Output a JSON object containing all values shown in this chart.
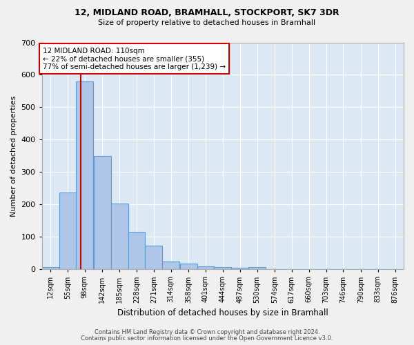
{
  "title1": "12, MIDLAND ROAD, BRAMHALL, STOCKPORT, SK7 3DR",
  "title2": "Size of property relative to detached houses in Bramhall",
  "xlabel": "Distribution of detached houses by size in Bramhall",
  "ylabel": "Number of detached properties",
  "bin_labels": [
    "12sqm",
    "55sqm",
    "98sqm",
    "142sqm",
    "185sqm",
    "228sqm",
    "271sqm",
    "314sqm",
    "358sqm",
    "401sqm",
    "444sqm",
    "487sqm",
    "530sqm",
    "574sqm",
    "617sqm",
    "660sqm",
    "703sqm",
    "746sqm",
    "790sqm",
    "833sqm",
    "876sqm"
  ],
  "bin_edges": [
    12,
    55,
    98,
    142,
    185,
    228,
    271,
    314,
    358,
    401,
    444,
    487,
    530,
    574,
    617,
    660,
    703,
    746,
    790,
    833,
    876
  ],
  "bar_heights": [
    7,
    237,
    580,
    349,
    203,
    115,
    74,
    25,
    17,
    9,
    6,
    4,
    8,
    0,
    0,
    0,
    0,
    0,
    0,
    0
  ],
  "bar_color": "#aec6e8",
  "bar_edge_color": "#5b9bd5",
  "bg_color": "#dce9f5",
  "grid_color": "#ffffff",
  "vline_x": 110,
  "vline_color": "#cc0000",
  "annotation_line1": "12 MIDLAND ROAD: 110sqm",
  "annotation_line2": "← 22% of detached houses are smaller (355)",
  "annotation_line3": "77% of semi-detached houses are larger (1,239) →",
  "annotation_box_color": "#ffffff",
  "annotation_box_edge": "#cc0000",
  "footer1": "Contains HM Land Registry data © Crown copyright and database right 2024.",
  "footer2": "Contains public sector information licensed under the Open Government Licence v3.0.",
  "ylim": [
    0,
    700
  ],
  "yticks": [
    0,
    100,
    200,
    300,
    400,
    500,
    600,
    700
  ],
  "fig_bg": "#f0f0f0"
}
